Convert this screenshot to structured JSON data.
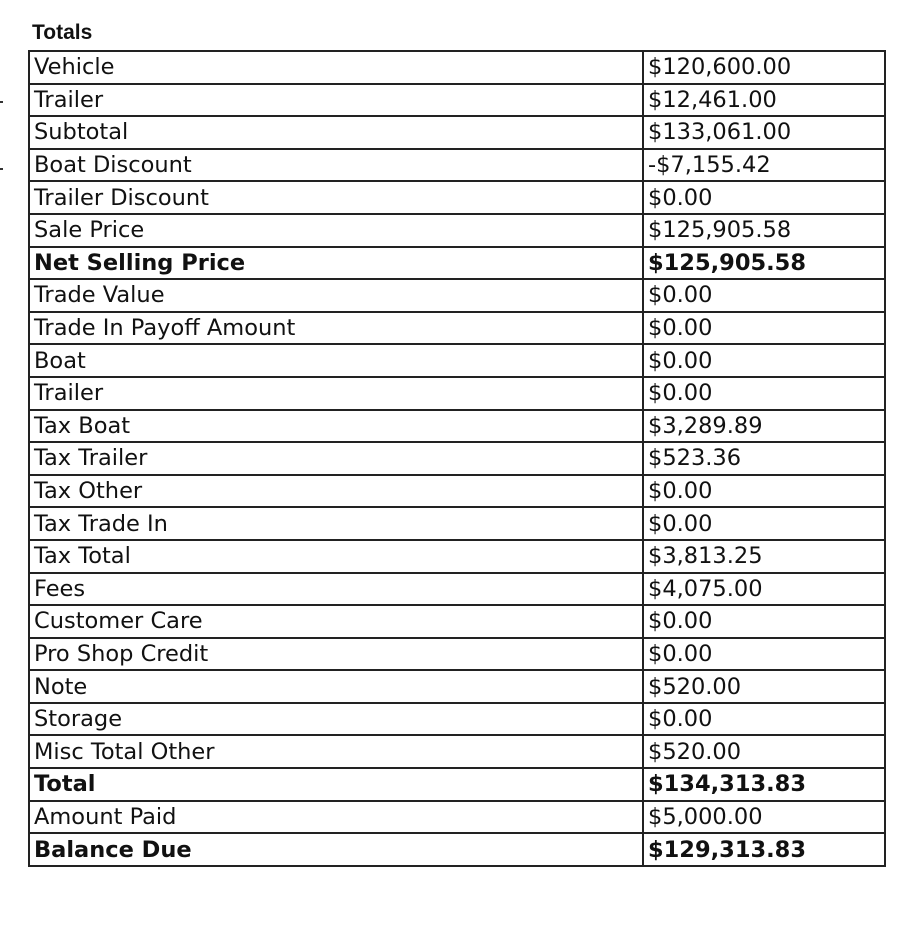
{
  "title": "Totals",
  "rows": [
    {
      "label": "Vehicle",
      "value": "$120,600.00",
      "bold": false
    },
    {
      "label": "Trailer",
      "value": "$12,461.00",
      "bold": false
    },
    {
      "label": "Subtotal",
      "value": "$133,061.00",
      "bold": false
    },
    {
      "label": "Boat Discount",
      "value": "-$7,155.42",
      "bold": false
    },
    {
      "label": "Trailer Discount",
      "value": "$0.00",
      "bold": false
    },
    {
      "label": "Sale Price",
      "value": "$125,905.58",
      "bold": false
    },
    {
      "label": "Net Selling Price",
      "value": "$125,905.58",
      "bold": true
    },
    {
      "label": "Trade Value",
      "value": "$0.00",
      "bold": false
    },
    {
      "label": "Trade In Payoff Amount",
      "value": "$0.00",
      "bold": false
    },
    {
      "label": "Boat",
      "value": "$0.00",
      "bold": false
    },
    {
      "label": "Trailer",
      "value": "$0.00",
      "bold": false
    },
    {
      "label": "Tax Boat",
      "value": "$3,289.89",
      "bold": false
    },
    {
      "label": "Tax Trailer",
      "value": "$523.36",
      "bold": false
    },
    {
      "label": "Tax Other",
      "value": "$0.00",
      "bold": false
    },
    {
      "label": "Tax Trade In",
      "value": "$0.00",
      "bold": false
    },
    {
      "label": "Tax Total",
      "value": "$3,813.25",
      "bold": false
    },
    {
      "label": "Fees",
      "value": "$4,075.00",
      "bold": false
    },
    {
      "label": "Customer Care",
      "value": "$0.00",
      "bold": false
    },
    {
      "label": "Pro Shop Credit",
      "value": "$0.00",
      "bold": false
    },
    {
      "label": "Note",
      "value": "$520.00",
      "bold": false
    },
    {
      "label": "Storage",
      "value": "$0.00",
      "bold": false
    },
    {
      "label": "Misc Total Other",
      "value": "$520.00",
      "bold": false
    },
    {
      "label": "Total",
      "value": "$134,313.83",
      "bold": true
    },
    {
      "label": "Amount Paid",
      "value": "$5,000.00",
      "bold": false
    },
    {
      "label": "Balance Due",
      "value": "$129,313.83",
      "bold": true
    }
  ]
}
